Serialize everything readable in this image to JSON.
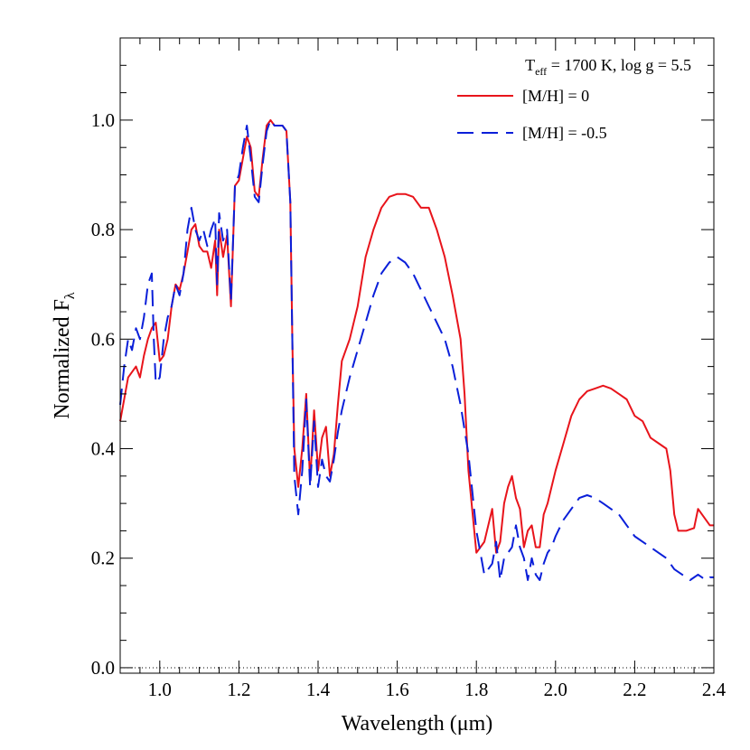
{
  "chart_data": {
    "type": "line",
    "xlabel": "Wavelength (μm)",
    "ylabel_main": "Normalized F",
    "ylabel_sub": "λ",
    "xlim": [
      0.9,
      2.4
    ],
    "ylim": [
      -0.01,
      1.15
    ],
    "x_ticks": [
      1.0,
      1.2,
      1.4,
      1.6,
      1.8,
      2.0,
      2.2,
      2.4
    ],
    "x_tick_labels": [
      "1.0",
      "1.2",
      "1.4",
      "1.6",
      "1.8",
      "2.0",
      "2.2",
      "2.4"
    ],
    "y_ticks": [
      0.0,
      0.2,
      0.4,
      0.6,
      0.8,
      1.0
    ],
    "y_tick_labels": [
      "0.0",
      "0.2",
      "0.4",
      "0.6",
      "0.8",
      "1.0"
    ],
    "grid": false,
    "zero_line": {
      "y": 0.0,
      "style": "dotted"
    },
    "annotation": {
      "t_main": "T",
      "t_sub": "eff",
      "rest": " = 1700 K, log g = 5.5"
    },
    "legend_position": "top-right",
    "series": [
      {
        "name": "[M/H] = 0",
        "color": "#e8141b",
        "dash": "solid",
        "x": [
          0.9,
          0.92,
          0.94,
          0.95,
          0.96,
          0.97,
          0.98,
          0.99,
          1.0,
          1.01,
          1.02,
          1.03,
          1.04,
          1.05,
          1.06,
          1.07,
          1.08,
          1.09,
          1.1,
          1.11,
          1.12,
          1.13,
          1.14,
          1.145,
          1.15,
          1.16,
          1.17,
          1.18,
          1.19,
          1.2,
          1.21,
          1.22,
          1.23,
          1.24,
          1.25,
          1.26,
          1.27,
          1.28,
          1.29,
          1.3,
          1.31,
          1.32,
          1.33,
          1.335,
          1.34,
          1.35,
          1.36,
          1.37,
          1.38,
          1.39,
          1.4,
          1.41,
          1.42,
          1.43,
          1.44,
          1.45,
          1.46,
          1.48,
          1.5,
          1.52,
          1.54,
          1.56,
          1.58,
          1.6,
          1.62,
          1.64,
          1.66,
          1.68,
          1.7,
          1.72,
          1.74,
          1.76,
          1.77,
          1.78,
          1.8,
          1.82,
          1.84,
          1.85,
          1.86,
          1.87,
          1.88,
          1.89,
          1.9,
          1.91,
          1.92,
          1.93,
          1.94,
          1.95,
          1.96,
          1.97,
          1.98,
          1.99,
          2.0,
          2.02,
          2.04,
          2.06,
          2.08,
          2.1,
          2.12,
          2.14,
          2.16,
          2.18,
          2.2,
          2.22,
          2.24,
          2.26,
          2.28,
          2.29,
          2.3,
          2.31,
          2.33,
          2.35,
          2.36,
          2.38,
          2.39,
          2.4
        ],
        "y": [
          0.45,
          0.53,
          0.55,
          0.53,
          0.57,
          0.6,
          0.62,
          0.63,
          0.56,
          0.57,
          0.6,
          0.66,
          0.7,
          0.69,
          0.72,
          0.76,
          0.8,
          0.81,
          0.77,
          0.76,
          0.76,
          0.73,
          0.78,
          0.68,
          0.8,
          0.75,
          0.79,
          0.66,
          0.88,
          0.89,
          0.93,
          0.97,
          0.95,
          0.87,
          0.86,
          0.93,
          0.99,
          1.0,
          0.99,
          0.99,
          0.99,
          0.98,
          0.85,
          0.6,
          0.4,
          0.33,
          0.4,
          0.5,
          0.34,
          0.47,
          0.36,
          0.42,
          0.44,
          0.35,
          0.39,
          0.48,
          0.56,
          0.6,
          0.66,
          0.75,
          0.8,
          0.84,
          0.86,
          0.865,
          0.865,
          0.86,
          0.84,
          0.84,
          0.8,
          0.75,
          0.68,
          0.6,
          0.5,
          0.36,
          0.21,
          0.23,
          0.29,
          0.21,
          0.23,
          0.3,
          0.33,
          0.35,
          0.31,
          0.29,
          0.22,
          0.25,
          0.26,
          0.22,
          0.22,
          0.28,
          0.3,
          0.33,
          0.36,
          0.41,
          0.46,
          0.49,
          0.505,
          0.51,
          0.515,
          0.51,
          0.5,
          0.49,
          0.46,
          0.45,
          0.42,
          0.41,
          0.4,
          0.36,
          0.28,
          0.25,
          0.25,
          0.255,
          0.29,
          0.27,
          0.26,
          0.26
        ]
      },
      {
        "name": "[M/H] = -0.5",
        "color": "#0a1fd9",
        "dash": "long-dash",
        "x": [
          0.9,
          0.91,
          0.92,
          0.93,
          0.94,
          0.95,
          0.96,
          0.97,
          0.98,
          0.985,
          0.99,
          1.0,
          1.01,
          1.02,
          1.03,
          1.04,
          1.05,
          1.06,
          1.07,
          1.08,
          1.09,
          1.1,
          1.11,
          1.12,
          1.13,
          1.14,
          1.145,
          1.15,
          1.16,
          1.17,
          1.18,
          1.19,
          1.2,
          1.21,
          1.22,
          1.23,
          1.24,
          1.25,
          1.26,
          1.27,
          1.28,
          1.29,
          1.3,
          1.31,
          1.32,
          1.33,
          1.335,
          1.34,
          1.35,
          1.36,
          1.37,
          1.38,
          1.39,
          1.4,
          1.41,
          1.42,
          1.43,
          1.44,
          1.45,
          1.46,
          1.48,
          1.5,
          1.52,
          1.54,
          1.56,
          1.58,
          1.6,
          1.62,
          1.64,
          1.66,
          1.68,
          1.7,
          1.72,
          1.74,
          1.76,
          1.78,
          1.8,
          1.82,
          1.84,
          1.85,
          1.86,
          1.87,
          1.88,
          1.89,
          1.9,
          1.91,
          1.92,
          1.93,
          1.94,
          1.95,
          1.96,
          1.97,
          1.98,
          1.99,
          2.0,
          2.02,
          2.04,
          2.06,
          2.08,
          2.1,
          2.12,
          2.14,
          2.16,
          2.18,
          2.2,
          2.22,
          2.24,
          2.26,
          2.28,
          2.3,
          2.32,
          2.34,
          2.36,
          2.38,
          2.39,
          2.4
        ],
        "y": [
          0.48,
          0.55,
          0.6,
          0.58,
          0.62,
          0.6,
          0.64,
          0.7,
          0.72,
          0.6,
          0.52,
          0.53,
          0.6,
          0.64,
          0.66,
          0.7,
          0.68,
          0.72,
          0.8,
          0.84,
          0.8,
          0.78,
          0.8,
          0.77,
          0.8,
          0.82,
          0.7,
          0.83,
          0.78,
          0.8,
          0.67,
          0.88,
          0.9,
          0.95,
          0.99,
          0.93,
          0.86,
          0.85,
          0.92,
          0.98,
          1.0,
          0.99,
          0.99,
          0.99,
          0.98,
          0.85,
          0.6,
          0.35,
          0.28,
          0.36,
          0.49,
          0.33,
          0.45,
          0.33,
          0.38,
          0.35,
          0.34,
          0.38,
          0.43,
          0.47,
          0.53,
          0.58,
          0.63,
          0.68,
          0.72,
          0.74,
          0.75,
          0.74,
          0.72,
          0.69,
          0.66,
          0.63,
          0.6,
          0.55,
          0.48,
          0.39,
          0.25,
          0.17,
          0.19,
          0.23,
          0.16,
          0.2,
          0.21,
          0.22,
          0.26,
          0.22,
          0.2,
          0.16,
          0.2,
          0.17,
          0.16,
          0.19,
          0.21,
          0.22,
          0.24,
          0.27,
          0.29,
          0.31,
          0.315,
          0.31,
          0.3,
          0.29,
          0.28,
          0.26,
          0.24,
          0.23,
          0.22,
          0.21,
          0.2,
          0.18,
          0.17,
          0.16,
          0.17,
          0.16,
          0.165,
          0.165
        ]
      }
    ]
  }
}
